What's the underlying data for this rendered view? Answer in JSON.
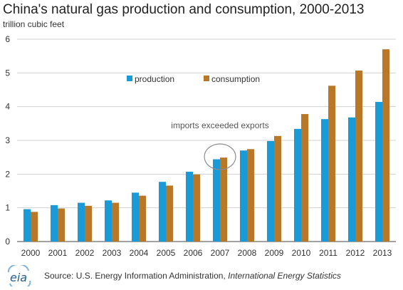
{
  "chart_data": {
    "type": "bar",
    "title": "China's natural gas production and consumption, 2000-2013",
    "ylabel": "trillion cubic feet",
    "xlabel": "",
    "ylim": [
      0,
      6
    ],
    "yticks": [
      0,
      1,
      2,
      3,
      4,
      5,
      6
    ],
    "grid": "horizontal",
    "legend_position": "top-center",
    "categories": [
      "2000",
      "2001",
      "2002",
      "2003",
      "2004",
      "2005",
      "2006",
      "2007",
      "2008",
      "2009",
      "2010",
      "2011",
      "2012",
      "2013"
    ],
    "series": [
      {
        "name": "production",
        "color": "#1a9ad6",
        "values": [
          0.96,
          1.08,
          1.15,
          1.22,
          1.45,
          1.77,
          2.07,
          2.44,
          2.7,
          2.98,
          3.34,
          3.63,
          3.68,
          4.14
        ]
      },
      {
        "name": "consumption",
        "color": "#b87828",
        "values": [
          0.88,
          0.98,
          1.06,
          1.15,
          1.36,
          1.66,
          1.99,
          2.49,
          2.74,
          3.13,
          3.78,
          4.62,
          5.07,
          5.7
        ]
      }
    ],
    "annotation": {
      "text": "imports exceeded exports",
      "category": "2007"
    }
  },
  "source": {
    "logo_text": "eia",
    "prefix": "Source: U.S. Energy Information Administration,",
    "publication": "International Energy Statistics"
  }
}
